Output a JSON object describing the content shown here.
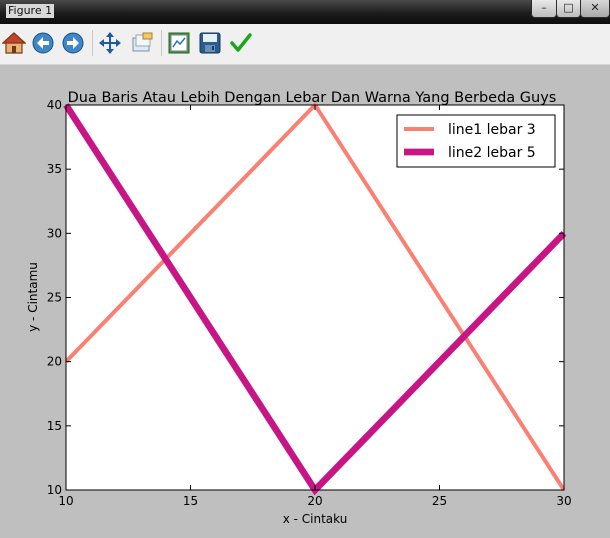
{
  "window": {
    "title": "Figure 1",
    "minimize_glyph": "–",
    "maximize_glyph": "□",
    "close_glyph": "✕"
  },
  "toolbar": {
    "buttons": [
      {
        "icon": "home-icon"
      },
      {
        "icon": "back-arrow-icon"
      },
      {
        "icon": "forward-arrow-icon"
      },
      {
        "icon": "pan-move-icon"
      },
      {
        "icon": "zoom-rectangle-icon"
      },
      {
        "icon": "configure-subplots-icon"
      },
      {
        "icon": "save-floppy-icon"
      },
      {
        "icon": "checkmark-icon"
      }
    ]
  },
  "chart_data": {
    "type": "line",
    "title": "Dua Baris Atau Lebih Dengan Lebar Dan Warna Yang Berbeda Guys",
    "xlabel": "x - Cintaku",
    "ylabel": "y - Cintamu",
    "xlim": [
      10,
      30
    ],
    "ylim": [
      10,
      40
    ],
    "xticks": [
      10,
      15,
      20,
      25,
      30
    ],
    "yticks": [
      10,
      15,
      20,
      25,
      30,
      35,
      40
    ],
    "grid": false,
    "legend_position": "upper-right",
    "series": [
      {
        "name": "line1 lebar 3",
        "x": [
          10,
          20,
          30
        ],
        "y": [
          20,
          40,
          10
        ],
        "color": "#fa8072",
        "linewidth": 3
      },
      {
        "name": "line2 lebar 5",
        "x": [
          10,
          20,
          30
        ],
        "y": [
          40,
          10,
          30
        ],
        "color": "#c71585",
        "linewidth": 5
      }
    ]
  }
}
